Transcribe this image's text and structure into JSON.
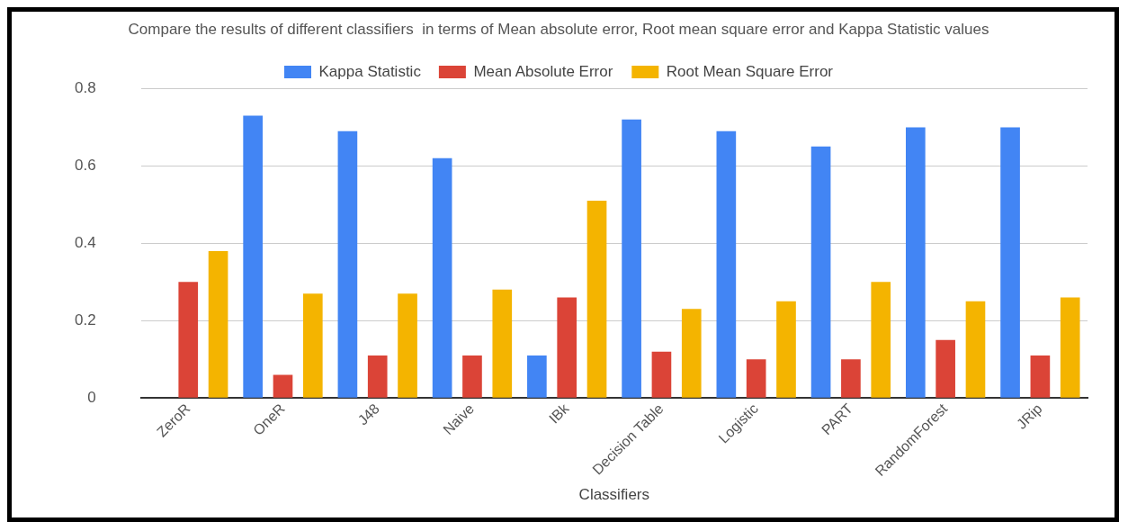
{
  "chart_data": {
    "type": "bar",
    "title": "Compare the results of different classifiers  in terms of Mean absolute error, Root mean square error and Kappa Statistic values",
    "xlabel": "Classifiers",
    "categories": [
      "ZeroR",
      "OneR",
      "J48",
      "Naive",
      "IBk",
      "Decision Table",
      "Logistic",
      "PART",
      "RandomForest",
      "JRip"
    ],
    "series": [
      {
        "name": "Kappa Statistic",
        "color": "#4285f4",
        "values": [
          0,
          0.73,
          0.69,
          0.62,
          0.11,
          0.72,
          0.69,
          0.65,
          0.7,
          0.7
        ]
      },
      {
        "name": "Mean Absolute Error",
        "color": "#db4437",
        "values": [
          0.3,
          0.06,
          0.11,
          0.11,
          0.26,
          0.12,
          0.1,
          0.1,
          0.15,
          0.11
        ]
      },
      {
        "name": "Root Mean Square Error",
        "color": "#f4b400",
        "values": [
          0.38,
          0.27,
          0.27,
          0.28,
          0.51,
          0.23,
          0.25,
          0.3,
          0.25,
          0.26
        ]
      }
    ],
    "ylim": [
      0,
      0.8
    ],
    "yticks": [
      0,
      0.2,
      0.4,
      0.6,
      0.8
    ],
    "grid": "y",
    "legend": "top"
  }
}
